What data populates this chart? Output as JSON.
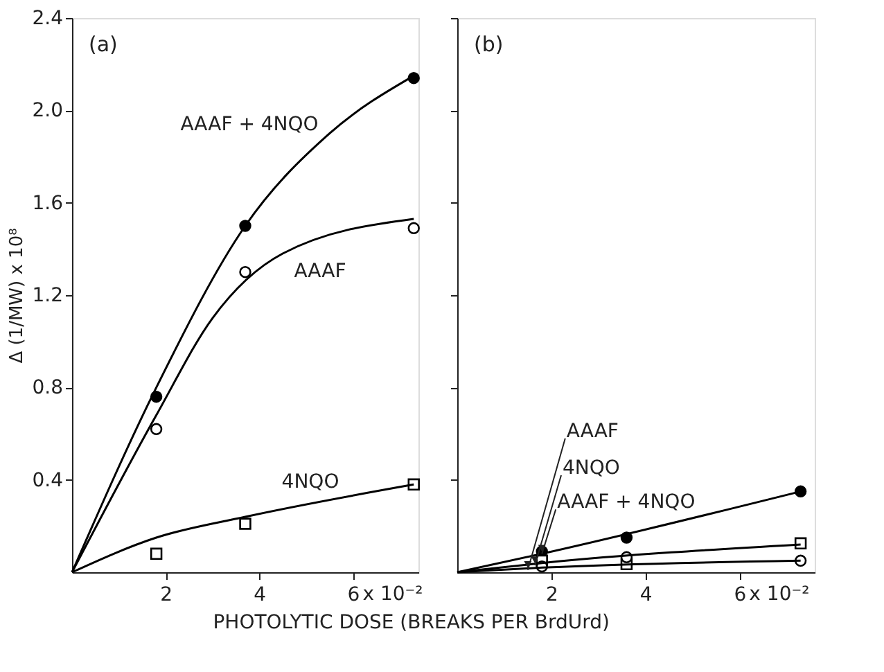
{
  "chart_data": [
    {
      "type": "scatter",
      "ylabel": "Δ (1/MW) x 10⁸",
      "xlabel": "PHOTOLYTIC DOSE (BREAKS PER BrdUrd)",
      "xlim": [
        0,
        7.4
      ],
      "ylim": [
        0,
        2.4
      ],
      "xticks": [
        2,
        4,
        6
      ],
      "yticks": [
        0.4,
        0.8,
        1.2,
        1.6,
        {
          "value": 2,
          "label": "2.0"
        },
        2.4
      ],
      "grid": false,
      "series": [
        {
          "marker": "circle",
          "color": "#000000",
          "x": [
            1.8,
            3.7,
            7.3
          ],
          "values": [
            0.76,
            1.5,
            2.14
          ]
        },
        {
          "marker": "circle",
          "color": "#ffffff",
          "x": [
            1.8,
            3.7,
            7.3
          ],
          "values": [
            0.62,
            1.3,
            1.49
          ]
        },
        {
          "marker": "square",
          "color": "#ffffff",
          "x": [
            1.8,
            3.7,
            7.3
          ],
          "values": [
            0.08,
            0.21,
            0.38
          ]
        },
        {
          "type": "line",
          "line_style": "solid",
          "color": "#000000",
          "x": [
            0,
            1.8,
            3.7,
            5.5,
            7.3
          ],
          "values": [
            0,
            0.8,
            1.5,
            1.9,
            2.15
          ]
        },
        {
          "type": "line",
          "line_style": "solid",
          "color": "#000000",
          "x": [
            0,
            1.8,
            3.0,
            4.5,
            7.3
          ],
          "values": [
            0,
            0.68,
            1.1,
            1.38,
            1.53
          ]
        },
        {
          "type": "line",
          "line_style": "solid",
          "color": "#000000",
          "x": [
            0,
            1.8,
            3.7,
            7.3
          ],
          "values": [
            0,
            0.15,
            0.24,
            0.38
          ]
        }
      ],
      "annotations": [
        "(a)",
        "x 10⁻²",
        "AAAF + 4NQO",
        "AAAF",
        "4NQO"
      ]
    },
    {
      "type": "scatter",
      "xlim": [
        0,
        7.6
      ],
      "ylim": [
        0,
        2.4
      ],
      "xticks": [
        2,
        4,
        6
      ],
      "yticks": [
        {
          "value": 0.4,
          "label": null
        },
        {
          "value": 0.8,
          "label": null
        },
        {
          "value": 1.2,
          "label": null
        },
        {
          "value": 1.6,
          "label": null
        },
        {
          "value": 2,
          "label": null
        },
        {
          "value": 2.4,
          "label": null
        }
      ],
      "tick_labels": "x",
      "grid": false,
      "series": [
        {
          "marker": "circle",
          "color": "#000000",
          "x": [
            1.8,
            3.6,
            7.3
          ],
          "values": [
            0.09,
            0.15,
            0.35
          ]
        },
        {
          "marker": "square",
          "color": "#ffffff",
          "x": [
            1.8,
            3.6,
            7.3
          ],
          "values": [
            0.05,
            0.035,
            0.125
          ]
        },
        {
          "marker": "circle",
          "color": "#ffffff",
          "x": [
            1.8,
            3.6,
            7.3
          ],
          "values": [
            0.025,
            0.065,
            0.05
          ]
        },
        {
          "type": "line",
          "line_style": "solid",
          "color": "#000000",
          "x": [
            0,
            1.8,
            7.3
          ],
          "values": [
            0,
            0.08,
            0.35
          ]
        },
        {
          "type": "line",
          "line_style": "solid",
          "color": "#000000",
          "x": [
            0,
            1.8,
            7.3
          ],
          "values": [
            0,
            0.04,
            0.12
          ]
        },
        {
          "type": "line",
          "line_style": "solid",
          "color": "#000000",
          "x": [
            0,
            1.8,
            7.3
          ],
          "values": [
            0,
            0.02,
            0.05
          ]
        }
      ],
      "annotations": [
        "(b)",
        "x 10⁻²",
        {
          "text": "AAAF",
          "x": 1.5,
          "y": 0.01
        },
        {
          "text": "4NQO",
          "x": 1.65,
          "y": 0.03
        },
        {
          "text": "AAAF + 4NQO",
          "x": 1.8,
          "y": 0.08
        }
      ]
    }
  ]
}
